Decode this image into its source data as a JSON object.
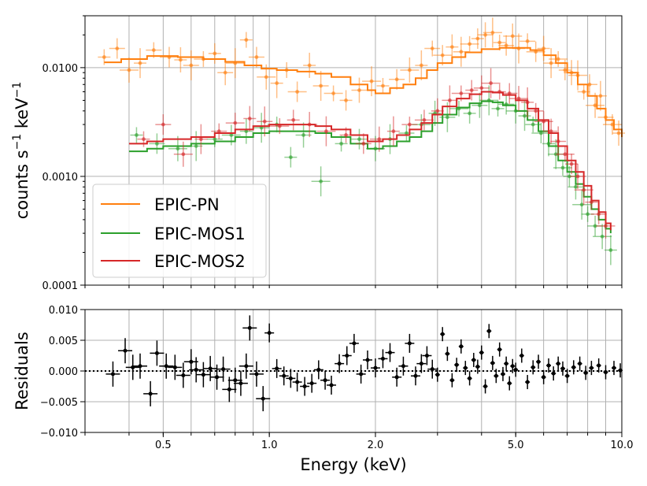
{
  "chart_data": [
    {
      "type": "line",
      "panel": "spectrum",
      "xscale": "log",
      "yscale": "log",
      "xlim": [
        0.3,
        10.0
      ],
      "ylim": [
        0.0001,
        0.03
      ],
      "ylabel_main": "counts s",
      "ylabel_sup1": "−1",
      "ylabel_mid": " keV",
      "ylabel_sup2": "−1",
      "yticks": [
        0.0001,
        0.001,
        0.01
      ],
      "ytick_labels": [
        "0.0001",
        "0.0010",
        "0.0100"
      ],
      "grid": true,
      "legend_position": "lower-left",
      "series": [
        {
          "name": "EPIC-PN",
          "color": "#ff7f0e",
          "model_x": [
            0.34,
            0.38,
            0.45,
            0.55,
            0.65,
            0.75,
            0.85,
            0.95,
            1.05,
            1.2,
            1.35,
            1.5,
            1.7,
            1.9,
            2.0,
            2.2,
            2.4,
            2.6,
            2.8,
            3.0,
            3.3,
            3.6,
            4.0,
            4.5,
            5.0,
            5.5,
            6.0,
            6.5,
            7.0,
            7.5,
            8.0,
            8.5,
            9.0,
            9.5,
            10.0
          ],
          "model_y": [
            0.0112,
            0.012,
            0.0128,
            0.0125,
            0.012,
            0.0113,
            0.0105,
            0.0098,
            0.0095,
            0.0092,
            0.0088,
            0.0082,
            0.007,
            0.0062,
            0.0058,
            0.0065,
            0.007,
            0.008,
            0.0095,
            0.011,
            0.0125,
            0.0138,
            0.0148,
            0.0152,
            0.0152,
            0.0145,
            0.013,
            0.011,
            0.009,
            0.007,
            0.0055,
            0.0042,
            0.0033,
            0.0027,
            0.0023
          ],
          "data_x": [
            0.34,
            0.37,
            0.4,
            0.43,
            0.47,
            0.52,
            0.56,
            0.6,
            0.65,
            0.7,
            0.75,
            0.8,
            0.86,
            0.92,
            0.98,
            1.05,
            1.12,
            1.2,
            1.3,
            1.4,
            1.52,
            1.65,
            1.8,
            1.95,
            2.1,
            2.3,
            2.5,
            2.7,
            2.9,
            3.1,
            3.3,
            3.5,
            3.7,
            3.9,
            4.1,
            4.3,
            4.5,
            4.7,
            4.9,
            5.1,
            5.4,
            5.7,
            6.0,
            6.3,
            6.6,
            6.9,
            7.2,
            7.5,
            7.8,
            8.1,
            8.4,
            8.7,
            9.0,
            9.4,
            9.8
          ],
          "data_y": [
            0.0125,
            0.015,
            0.0095,
            0.011,
            0.0145,
            0.0125,
            0.0118,
            0.0105,
            0.012,
            0.0135,
            0.009,
            0.011,
            0.018,
            0.0125,
            0.0082,
            0.0072,
            0.0095,
            0.006,
            0.0105,
            0.0068,
            0.0058,
            0.005,
            0.0062,
            0.0075,
            0.0068,
            0.0078,
            0.0095,
            0.0105,
            0.015,
            0.013,
            0.0155,
            0.014,
            0.0165,
            0.0185,
            0.02,
            0.021,
            0.017,
            0.016,
            0.0195,
            0.015,
            0.0175,
            0.014,
            0.015,
            0.011,
            0.012,
            0.0095,
            0.009,
            0.0085,
            0.006,
            0.007,
            0.0045,
            0.0055,
            0.0035,
            0.003,
            0.0025
          ]
        },
        {
          "name": "EPIC-MOS1",
          "color": "#2ca02c",
          "model_x": [
            0.4,
            0.45,
            0.5,
            0.6,
            0.7,
            0.8,
            0.9,
            1.0,
            1.1,
            1.2,
            1.35,
            1.5,
            1.7,
            1.9,
            2.1,
            2.3,
            2.5,
            2.7,
            2.9,
            3.1,
            3.4,
            3.7,
            4.0,
            4.3,
            4.6,
            5.0,
            5.4,
            5.8,
            6.2,
            6.6,
            7.0,
            7.4,
            7.8,
            8.2,
            8.6,
            9.0,
            9.3
          ],
          "model_y": [
            0.0017,
            0.0018,
            0.0019,
            0.002,
            0.0021,
            0.0023,
            0.0025,
            0.0026,
            0.0026,
            0.0026,
            0.0025,
            0.0023,
            0.002,
            0.0018,
            0.0019,
            0.0021,
            0.0023,
            0.0026,
            0.0031,
            0.0037,
            0.0043,
            0.0047,
            0.0049,
            0.0048,
            0.0045,
            0.004,
            0.0033,
            0.0026,
            0.0019,
            0.0014,
            0.0011,
            0.00085,
            0.00065,
            0.0005,
            0.0004,
            0.00033,
            0.0003
          ],
          "data_x": [
            0.42,
            0.48,
            0.55,
            0.62,
            0.7,
            0.78,
            0.86,
            0.95,
            1.05,
            1.15,
            1.25,
            1.4,
            1.6,
            1.8,
            2.0,
            2.2,
            2.45,
            2.7,
            2.95,
            3.2,
            3.45,
            3.7,
            3.95,
            4.2,
            4.45,
            4.7,
            5.0,
            5.3,
            5.6,
            5.9,
            6.2,
            6.5,
            6.8,
            7.1,
            7.4,
            7.7,
            8.0,
            8.4,
            8.8,
            9.3
          ],
          "data_y": [
            0.0024,
            0.002,
            0.0018,
            0.0019,
            0.0022,
            0.0024,
            0.0026,
            0.0028,
            0.003,
            0.0015,
            0.0024,
            0.0009,
            0.002,
            0.0022,
            0.0018,
            0.0022,
            0.0025,
            0.003,
            0.0038,
            0.0035,
            0.0042,
            0.0038,
            0.0045,
            0.005,
            0.0042,
            0.0046,
            0.004,
            0.0036,
            0.003,
            0.0025,
            0.002,
            0.0016,
            0.0012,
            0.001,
            0.0008,
            0.00055,
            0.00045,
            0.00035,
            0.00028,
            0.00021
          ]
        },
        {
          "name": "EPIC-MOS2",
          "color": "#d62728",
          "model_x": [
            0.4,
            0.45,
            0.5,
            0.6,
            0.7,
            0.8,
            0.9,
            1.0,
            1.1,
            1.2,
            1.35,
            1.5,
            1.7,
            1.9,
            2.1,
            2.3,
            2.5,
            2.7,
            2.9,
            3.1,
            3.4,
            3.7,
            4.0,
            4.3,
            4.6,
            5.0,
            5.4,
            5.8,
            6.2,
            6.6,
            7.0,
            7.4,
            7.8,
            8.2,
            8.6,
            9.0,
            9.3
          ],
          "model_y": [
            0.002,
            0.0021,
            0.0022,
            0.0023,
            0.0025,
            0.0027,
            0.0029,
            0.003,
            0.003,
            0.003,
            0.0029,
            0.0027,
            0.0024,
            0.0021,
            0.0022,
            0.0024,
            0.0027,
            0.0031,
            0.0037,
            0.0044,
            0.0052,
            0.0057,
            0.006,
            0.0059,
            0.0056,
            0.005,
            0.0042,
            0.0033,
            0.0025,
            0.0019,
            0.0014,
            0.0011,
            0.00082,
            0.0006,
            0.00047,
            0.00037,
            0.00032
          ],
          "data_x": [
            0.44,
            0.5,
            0.57,
            0.64,
            0.72,
            0.8,
            0.88,
            0.97,
            1.07,
            1.17,
            1.3,
            1.45,
            1.65,
            1.85,
            2.05,
            2.25,
            2.5,
            2.75,
            3.0,
            3.25,
            3.5,
            3.75,
            4.0,
            4.25,
            4.5,
            4.8,
            5.1,
            5.4,
            5.7,
            6.0,
            6.3,
            6.6,
            6.9,
            7.2,
            7.5,
            7.8,
            8.2,
            8.6,
            9.0
          ],
          "data_y": [
            0.0022,
            0.003,
            0.0016,
            0.0022,
            0.0026,
            0.0031,
            0.0034,
            0.0032,
            0.0029,
            0.0033,
            0.003,
            0.0026,
            0.0024,
            0.002,
            0.0022,
            0.0026,
            0.003,
            0.0033,
            0.004,
            0.005,
            0.0058,
            0.0062,
            0.0065,
            0.0072,
            0.006,
            0.0058,
            0.0052,
            0.0048,
            0.004,
            0.0032,
            0.0026,
            0.0021,
            0.0016,
            0.0013,
            0.001,
            0.00075,
            0.00058,
            0.00045,
            0.00035
          ]
        }
      ]
    },
    {
      "type": "scatter",
      "panel": "residuals",
      "xscale": "log",
      "xlim": [
        0.3,
        10.0
      ],
      "ylim": [
        -0.01,
        0.01
      ],
      "xlabel": "Energy (keV)",
      "ylabel": "Residuals",
      "xticks": [
        0.5,
        1.0,
        2.0,
        5.0,
        10.0
      ],
      "xtick_labels": [
        "0.5",
        "1.0",
        "2.0",
        "5.0",
        "10.0"
      ],
      "yticks": [
        -0.01,
        -0.005,
        0.0,
        0.005,
        0.01
      ],
      "ytick_labels": [
        "−0.010",
        "−0.005",
        "0.000",
        "0.005",
        "0.010"
      ],
      "zero_line": "dotted",
      "color": "#000000",
      "x": [
        0.36,
        0.39,
        0.41,
        0.43,
        0.46,
        0.48,
        0.51,
        0.54,
        0.57,
        0.6,
        0.62,
        0.65,
        0.68,
        0.71,
        0.74,
        0.77,
        0.8,
        0.83,
        0.86,
        0.88,
        0.92,
        0.96,
        1.0,
        1.05,
        1.1,
        1.15,
        1.2,
        1.26,
        1.32,
        1.38,
        1.44,
        1.5,
        1.58,
        1.66,
        1.74,
        1.82,
        1.9,
        2.0,
        2.1,
        2.2,
        2.3,
        2.4,
        2.5,
        2.6,
        2.7,
        2.8,
        2.9,
        3.0,
        3.1,
        3.2,
        3.3,
        3.4,
        3.5,
        3.6,
        3.7,
        3.8,
        3.9,
        4.0,
        4.1,
        4.2,
        4.3,
        4.4,
        4.5,
        4.6,
        4.7,
        4.8,
        4.9,
        5.0,
        5.2,
        5.4,
        5.6,
        5.8,
        6.0,
        6.2,
        6.4,
        6.6,
        6.8,
        7.0,
        7.3,
        7.6,
        7.9,
        8.2,
        8.6,
        9.0,
        9.5,
        9.9
      ],
      "y": [
        -0.0005,
        0.0033,
        0.0006,
        0.0008,
        -0.0037,
        0.0029,
        0.0008,
        0.0006,
        -0.0007,
        0.0015,
        0.0002,
        -0.0006,
        0.0004,
        -0.001,
        0.0003,
        -0.003,
        -0.0015,
        -0.002,
        0.0008,
        0.007,
        -0.0005,
        -0.0045,
        0.0062,
        0.0004,
        -0.0008,
        -0.0012,
        -0.0018,
        -0.0025,
        -0.002,
        0.0002,
        -0.0015,
        -0.0023,
        0.0012,
        0.0025,
        0.0045,
        -0.0005,
        0.0018,
        0.0005,
        0.002,
        0.003,
        -0.001,
        0.0008,
        0.0045,
        -0.0008,
        0.0012,
        0.0025,
        0.0003,
        -0.0006,
        0.006,
        0.0028,
        -0.0015,
        0.001,
        0.004,
        0.0005,
        -0.0012,
        0.0018,
        0.0007,
        0.003,
        -0.0025,
        0.0065,
        0.0013,
        -0.0008,
        0.0035,
        -0.0005,
        0.0012,
        -0.002,
        0.0008,
        0.0002,
        0.0025,
        -0.0018,
        0.0006,
        0.0015,
        -0.001,
        0.0009,
        -0.0004,
        0.0012,
        0.0004,
        -0.0008,
        0.0006,
        0.0012,
        -0.0003,
        0.0005,
        0.0009,
        -0.0002,
        0.0005,
        0.0001
      ]
    }
  ]
}
